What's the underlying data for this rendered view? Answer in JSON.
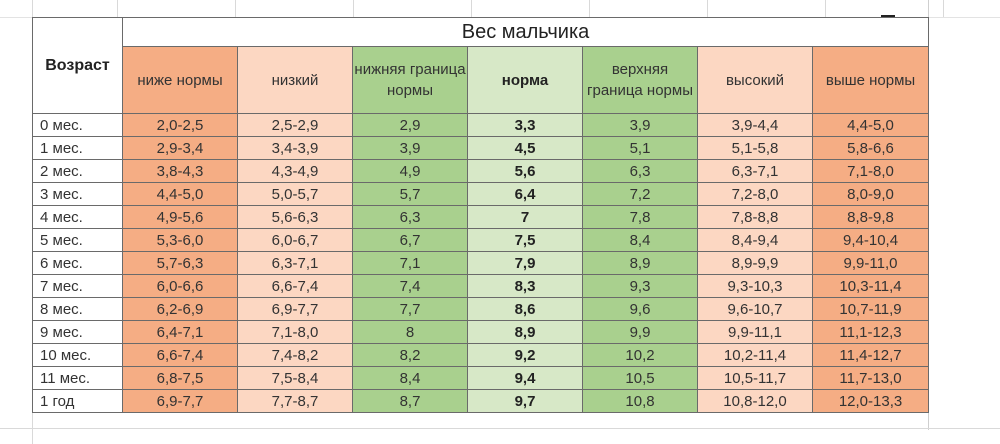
{
  "table": {
    "title": "Вес мальчика",
    "age_header": "Возраст",
    "columns": [
      "ниже нормы",
      "низкий",
      "нижняя граница нормы",
      "норма",
      "верхняя граница нормы",
      "высокий",
      "выше нормы"
    ],
    "rows": [
      {
        "age": "0 мес.",
        "values": [
          "2,0-2,5",
          "2,5-2,9",
          "2,9",
          "3,3",
          "3,9",
          "3,9-4,4",
          "4,4-5,0"
        ]
      },
      {
        "age": "1 мес.",
        "values": [
          "2,9-3,4",
          "3,4-3,9",
          "3,9",
          "4,5",
          "5,1",
          "5,1-5,8",
          "5,8-6,6"
        ]
      },
      {
        "age": "2 мес.",
        "values": [
          "3,8-4,3",
          "4,3-4,9",
          "4,9",
          "5,6",
          "6,3",
          "6,3-7,1",
          "7,1-8,0"
        ]
      },
      {
        "age": "3 мес.",
        "values": [
          "4,4-5,0",
          "5,0-5,7",
          "5,7",
          "6,4",
          "7,2",
          "7,2-8,0",
          "8,0-9,0"
        ]
      },
      {
        "age": "4 мес.",
        "values": [
          "4,9-5,6",
          "5,6-6,3",
          "6,3",
          "7",
          "7,8",
          "7,8-8,8",
          "8,8-9,8"
        ]
      },
      {
        "age": "5 мес.",
        "values": [
          "5,3-6,0",
          "6,0-6,7",
          "6,7",
          "7,5",
          "8,4",
          "8,4-9,4",
          "9,4-10,4"
        ]
      },
      {
        "age": "6 мес.",
        "values": [
          "5,7-6,3",
          "6,3-7,1",
          "7,1",
          "7,9",
          "8,9",
          "8,9-9,9",
          "9,9-11,0"
        ]
      },
      {
        "age": "7 мес.",
        "values": [
          "6,0-6,6",
          "6,6-7,4",
          "7,4",
          "8,3",
          "9,3",
          "9,3-10,3",
          "10,3-11,4"
        ]
      },
      {
        "age": "8 мес.",
        "values": [
          "6,2-6,9",
          "6,9-7,7",
          "7,7",
          "8,6",
          "9,6",
          "9,6-10,7",
          "10,7-11,9"
        ]
      },
      {
        "age": "9 мес.",
        "values": [
          "6,4-7,1",
          "7,1-8,0",
          "8",
          "8,9",
          "9,9",
          "9,9-11,1",
          "11,1-12,3"
        ]
      },
      {
        "age": "10 мес.",
        "values": [
          "6,6-7,4",
          "7,4-8,2",
          "8,2",
          "9,2",
          "10,2",
          "10,2-11,4",
          "11,4-12,7"
        ]
      },
      {
        "age": "11 мес.",
        "values": [
          "6,8-7,5",
          "7,5-8,4",
          "8,4",
          "9,4",
          "10,5",
          "10,5-11,7",
          "11,7-13,0"
        ]
      },
      {
        "age": "1 год",
        "values": [
          "6,9-7,7",
          "7,7-8,7",
          "8,7",
          "9,7",
          "10,8",
          "10,8-12,0",
          "12,0-13,3"
        ]
      }
    ]
  },
  "colors": {
    "below_norm": "#f5ad84",
    "low": "#fcd7c2",
    "norm_border": "#a9d08e",
    "norm": "#d7e8c7"
  }
}
